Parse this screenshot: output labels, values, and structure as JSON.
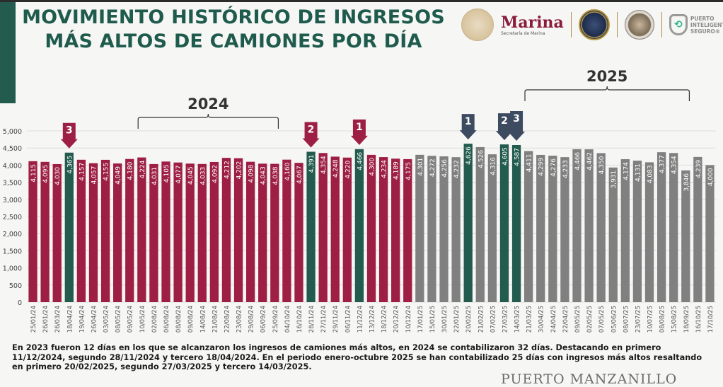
{
  "header": {
    "title_line1": "MOVIMIENTO HISTÓRICO DE INGRESOS",
    "title_line2": "MÁS ALTOS DE CAMIONES POR DÍA",
    "logos": {
      "marina": "Marina",
      "marina_sub": "Secretaría de Marina",
      "pis_line1": "PUERTO",
      "pis_line2": "INTELIGENTE",
      "pis_line3": "SEGURO®"
    }
  },
  "colors": {
    "bar_2024": "#9e1f44",
    "bar_2025": "#808080",
    "bar_top": "#235b4e",
    "arrow_2024": "#9e1f44",
    "arrow_2025": "#3d4b61",
    "brand_green": "#235b4e"
  },
  "chart_data": {
    "type": "bar",
    "title": "MOVIMIENTO HISTÓRICO DE INGRESOS MÁS ALTOS DE CAMIONES POR DÍA",
    "xlabel": "",
    "ylabel": "",
    "ylim": [
      0,
      5000
    ],
    "yticks": [
      0,
      500,
      1000,
      1500,
      2000,
      2500,
      3000,
      3500,
      4000,
      4500,
      5000
    ],
    "ytick_labels": [
      "0",
      "500",
      "1,000",
      "1,500",
      "2,000",
      "2,500",
      "3,000",
      "3,500",
      "4,000",
      "4,500",
      "5,000"
    ],
    "grid": true,
    "categories": [
      "25/01/24",
      "26/01/24",
      "26/03/24",
      "18/04/24",
      "19/04/24",
      "26/04/24",
      "03/05/24",
      "08/05/24",
      "09/05/24",
      "10/05/24",
      "02/08/24",
      "06/08/24",
      "08/08/24",
      "09/08/24",
      "14/08/24",
      "21/08/24",
      "22/08/24",
      "23/08/24",
      "29/08/24",
      "06/09/24",
      "25/09/24",
      "04/10/24",
      "16/10/24",
      "28/11/24",
      "27/11/24",
      "29/11/24",
      "06/11/24",
      "11/12/24",
      "13/12/24",
      "18/12/24",
      "20/12/24",
      "10/12/24",
      "17/01/25",
      "15/01/25",
      "30/01/25",
      "22/01/25",
      "20/02/25",
      "21/02/25",
      "07/02/25",
      "27/03/25",
      "14/03/25",
      "21/03/25",
      "30/04/25",
      "24/04/25",
      "22/04/25",
      "09/05/25",
      "02/05/25",
      "07/05/25",
      "05/06/25",
      "08/07/25",
      "23/07/25",
      "10/07/25",
      "08/08/25",
      "15/08/25",
      "18/09/25",
      "16/10/25",
      "17/10/25"
    ],
    "values": [
      4115,
      4095,
      4030,
      4365,
      4157,
      4057,
      4155,
      4049,
      4180,
      4224,
      4031,
      4105,
      4077,
      4045,
      4033,
      4092,
      4212,
      4202,
      4098,
      4043,
      4038,
      4160,
      4067,
      4391,
      4354,
      4248,
      4220,
      4466,
      4300,
      4234,
      4189,
      4175,
      4301,
      4272,
      4256,
      4232,
      4626,
      4526,
      4316,
      4605,
      4587,
      4411,
      4299,
      4276,
      4233,
      4466,
      4462,
      4350,
      3931,
      4174,
      4131,
      4083,
      4377,
      4354,
      3846,
      4239,
      4000
    ],
    "value_labels": [
      "4,115",
      "4,095",
      "4,030",
      "4,365",
      "4,157",
      "4,057",
      "4,155",
      "4,049",
      "4,180",
      "4,224",
      "4,031",
      "4,105",
      "4,077",
      "4,045",
      "4,033",
      "4,092",
      "4,212",
      "4,202",
      "4,098",
      "4,043",
      "4,038",
      "4,160",
      "4,067",
      "4,391",
      "4,354",
      "4,248",
      "4,220",
      "4,466",
      "4,300",
      "4,234",
      "4,189",
      "4,175",
      "4,301",
      "4,272",
      "4,256",
      "4,232",
      "4,626",
      "4,526",
      "4,316",
      "4,605",
      "4,587",
      "4,411",
      "4,299",
      "4,276",
      "4,233",
      "4,466",
      "4,462",
      "4,350",
      "3,931",
      "4,174",
      "4,131",
      "4,083",
      "4,377",
      "4,354",
      "3,846",
      "4,239",
      "4,000"
    ],
    "series_year": [
      "2024",
      "2024",
      "2024",
      "2024",
      "2024",
      "2024",
      "2024",
      "2024",
      "2024",
      "2024",
      "2024",
      "2024",
      "2024",
      "2024",
      "2024",
      "2024",
      "2024",
      "2024",
      "2024",
      "2024",
      "2024",
      "2024",
      "2024",
      "2024",
      "2024",
      "2024",
      "2024",
      "2024",
      "2024",
      "2024",
      "2024",
      "2024",
      "2025",
      "2025",
      "2025",
      "2025",
      "2025",
      "2025",
      "2025",
      "2025",
      "2025",
      "2025",
      "2025",
      "2025",
      "2025",
      "2025",
      "2025",
      "2025",
      "2025",
      "2025",
      "2025",
      "2025",
      "2025",
      "2025",
      "2025",
      "2025",
      "2025"
    ],
    "groups": [
      {
        "label": "2024",
        "from_index": 9,
        "to_index": 20
      },
      {
        "label": "2025",
        "from_index": 41,
        "to_index": 54
      }
    ],
    "annotations": [
      {
        "rank": "3",
        "index": 3,
        "year": "2024"
      },
      {
        "rank": "2",
        "index": 23,
        "year": "2024"
      },
      {
        "rank": "1",
        "index": 27,
        "year": "2024"
      },
      {
        "rank": "1",
        "index": 36,
        "year": "2025"
      },
      {
        "rank": "2",
        "index": 39,
        "year": "2025"
      },
      {
        "rank": "3",
        "index": 40,
        "year": "2025"
      }
    ],
    "highlighted_indices": [
      3,
      23,
      27,
      36,
      39,
      40
    ]
  },
  "caption": "En 2023 fueron 12 días en los que se alcanzaron los ingresos de camiones más altos, en 2024 se contabilizaron 32 días. Destacando en primero 11/12/2024, segundo 28/11/2024 y tercero 18/04/2024. En el periodo enero-octubre 2025 se han contabilizado 25 días con ingresos más altos resaltando en primero 20/02/2025, segundo 27/03/2025 y tercero 14/03/2025.",
  "footer": {
    "brand": "PUERTO MANZANILLO"
  }
}
